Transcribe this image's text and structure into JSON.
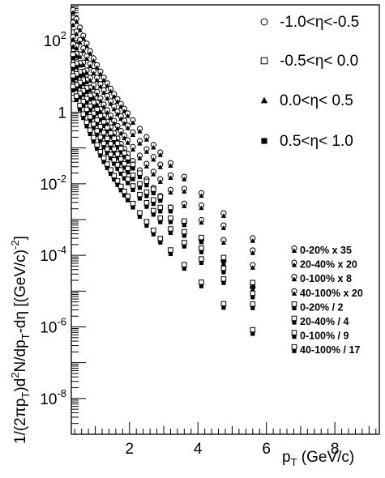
{
  "chart_data": {
    "type": "scatter",
    "xlabel_main": "p",
    "xlabel_sub": "T",
    "xlabel_rest": " (GeV/c)",
    "ylabel": "1/(2πpT)d2N/dpT-dη [(GeV/c)-2]",
    "ylabel_parts": {
      "p1": "1/(2πp",
      "s1": "T",
      "p2": ")d",
      "s2": "2",
      "p3": "N/dp",
      "s3": "T",
      "p4": "-dη [(GeV/c)",
      "s4": "-2",
      "p5": "]"
    },
    "xlim": [
      0.3,
      9.3
    ],
    "ylog": true,
    "ylim": [
      1e-09,
      1000
    ],
    "x_ticks": [
      {
        "v": 2,
        "label": "2"
      },
      {
        "v": 4,
        "label": "4"
      },
      {
        "v": 6,
        "label": "6"
      },
      {
        "v": 8,
        "label": "8"
      }
    ],
    "y_ticks": [
      {
        "exp": 2,
        "label_base": "10",
        "label_exp": "2"
      },
      {
        "exp": 0,
        "label_base": "1",
        "label_exp": ""
      },
      {
        "exp": -2,
        "label_base": "10",
        "label_exp": "-2"
      },
      {
        "exp": -4,
        "label_base": "10",
        "label_exp": "-4"
      },
      {
        "exp": -6,
        "label_base": "10",
        "label_exp": "-6"
      },
      {
        "exp": -8,
        "label_base": "10",
        "label_exp": "-8"
      }
    ],
    "eta_legend": [
      {
        "label": "-1.0<η<-0.5",
        "marker": "open-circle"
      },
      {
        "label": "-0.5<η< 0.0",
        "marker": "open-square"
      },
      {
        "label": "0.0<η< 0.5",
        "marker": "filled-triangle"
      },
      {
        "label": "0.5<η< 1.0",
        "marker": "filled-square"
      }
    ],
    "centrality_legend": [
      {
        "label": "0-20% x 35",
        "marker": "tri-combo"
      },
      {
        "label": "20-40% x 20",
        "marker": "tri-combo"
      },
      {
        "label": "0-100% x 8",
        "marker": "tri-combo"
      },
      {
        "label": "40-100% x 20",
        "marker": "tri-combo"
      },
      {
        "label": "0-20% / 2",
        "marker": "sq-combo"
      },
      {
        "label": "20-40% / 4",
        "marker": "sq-combo"
      },
      {
        "label": "0-100% / 9",
        "marker": "sq-combo"
      },
      {
        "label": "40-100% / 17",
        "marker": "sq-combo"
      }
    ],
    "x": [
      0.35,
      0.45,
      0.55,
      0.65,
      0.75,
      0.85,
      0.95,
      1.05,
      1.15,
      1.25,
      1.35,
      1.45,
      1.55,
      1.65,
      1.75,
      1.85,
      1.95,
      2.1,
      2.3,
      2.5,
      2.7,
      2.9,
      3.2,
      3.6,
      4.1,
      4.75,
      5.6
    ],
    "series": [
      {
        "name": "0-20% x 35",
        "logy": [
          2.8,
          2.55,
          2.31,
          2.08,
          1.86,
          1.65,
          1.45,
          1.26,
          1.08,
          0.91,
          0.75,
          0.6,
          0.45,
          0.31,
          0.17,
          0.04,
          -0.09,
          -0.28,
          -0.52,
          -0.75,
          -0.97,
          -1.18,
          -1.48,
          -1.86,
          -2.32,
          -2.88,
          -3.58
        ]
      },
      {
        "name": "20-40% x 20",
        "logy": [
          2.45,
          2.2,
          1.96,
          1.73,
          1.51,
          1.3,
          1.1,
          0.91,
          0.73,
          0.56,
          0.4,
          0.25,
          0.1,
          -0.04,
          -0.17,
          -0.3,
          -0.43,
          -0.62,
          -0.86,
          -1.09,
          -1.31,
          -1.52,
          -1.82,
          -2.2,
          -2.66,
          -3.22,
          -3.92
        ]
      },
      {
        "name": "0-100% x 8",
        "logy": [
          2.05,
          1.8,
          1.56,
          1.33,
          1.11,
          0.9,
          0.7,
          0.51,
          0.33,
          0.16,
          0.0,
          -0.15,
          -0.3,
          -0.44,
          -0.58,
          -0.71,
          -0.84,
          -1.03,
          -1.27,
          -1.5,
          -1.72,
          -1.93,
          -2.23,
          -2.61,
          -3.07,
          -3.63,
          -4.33
        ]
      },
      {
        "name": "40-100% x 20",
        "logy": [
          1.85,
          1.58,
          1.32,
          1.08,
          0.85,
          0.63,
          0.42,
          0.22,
          0.03,
          -0.15,
          -0.32,
          -0.48,
          -0.64,
          -0.79,
          -0.94,
          -1.08,
          -1.22,
          -1.42,
          -1.68,
          -1.93,
          -2.17,
          -2.4,
          -2.72,
          -3.13,
          -3.62,
          -4.22,
          -4.95
        ]
      },
      {
        "name": "0-20% / 2",
        "logy": [
          1.55,
          1.3,
          1.06,
          0.83,
          0.61,
          0.4,
          0.2,
          0.01,
          -0.17,
          -0.34,
          -0.5,
          -0.65,
          -0.8,
          -0.94,
          -1.08,
          -1.21,
          -1.34,
          -1.53,
          -1.77,
          -2.0,
          -2.22,
          -2.43,
          -2.73,
          -3.11,
          -3.57,
          -4.13,
          -4.83
        ]
      },
      {
        "name": "20-40% / 4",
        "logy": [
          1.25,
          1.0,
          0.76,
          0.53,
          0.31,
          0.1,
          -0.1,
          -0.29,
          -0.47,
          -0.64,
          -0.8,
          -0.95,
          -1.1,
          -1.24,
          -1.38,
          -1.51,
          -1.64,
          -1.83,
          -2.07,
          -2.3,
          -2.52,
          -2.73,
          -3.03,
          -3.41,
          -3.87,
          -4.43,
          -5.13
        ]
      },
      {
        "name": "0-100% / 9",
        "logy": [
          0.95,
          0.7,
          0.46,
          0.23,
          0.01,
          -0.2,
          -0.4,
          -0.59,
          -0.77,
          -0.94,
          -1.1,
          -1.25,
          -1.4,
          -1.54,
          -1.68,
          -1.81,
          -1.94,
          -2.13,
          -2.37,
          -2.6,
          -2.82,
          -3.03,
          -3.33,
          -3.71,
          -4.17,
          -4.73,
          -5.43
        ]
      },
      {
        "name": "40-100% / 17",
        "logy": [
          0.65,
          0.38,
          0.12,
          -0.12,
          -0.35,
          -0.57,
          -0.78,
          -0.98,
          -1.17,
          -1.35,
          -1.52,
          -1.68,
          -1.84,
          -1.99,
          -2.14,
          -2.28,
          -2.42,
          -2.62,
          -2.88,
          -3.13,
          -3.37,
          -3.6,
          -3.92,
          -4.33,
          -4.82,
          -5.42,
          -6.15
        ]
      }
    ]
  }
}
